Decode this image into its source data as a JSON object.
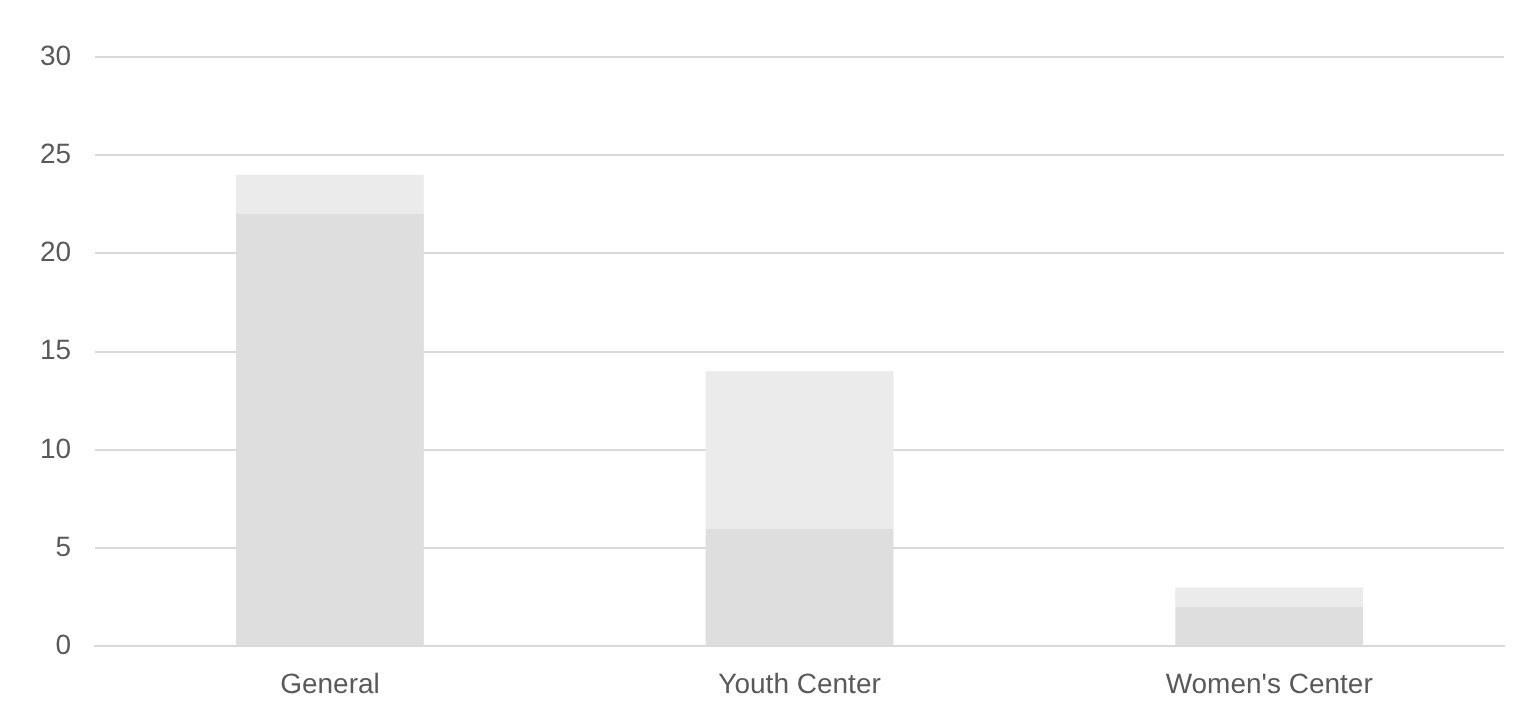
{
  "chart_data": {
    "type": "bar",
    "stacked": true,
    "categories": [
      "General",
      "Youth Center",
      "Women's Center"
    ],
    "series": [
      {
        "color": "#dedede",
        "values": [
          22,
          6,
          2
        ]
      },
      {
        "color": "#ebebeb",
        "values": [
          2,
          8,
          1
        ]
      }
    ],
    "ylim": [
      0,
      30
    ],
    "yticks": [
      0,
      5,
      10,
      15,
      20,
      25,
      30
    ],
    "grid": "y",
    "legend": false
  }
}
